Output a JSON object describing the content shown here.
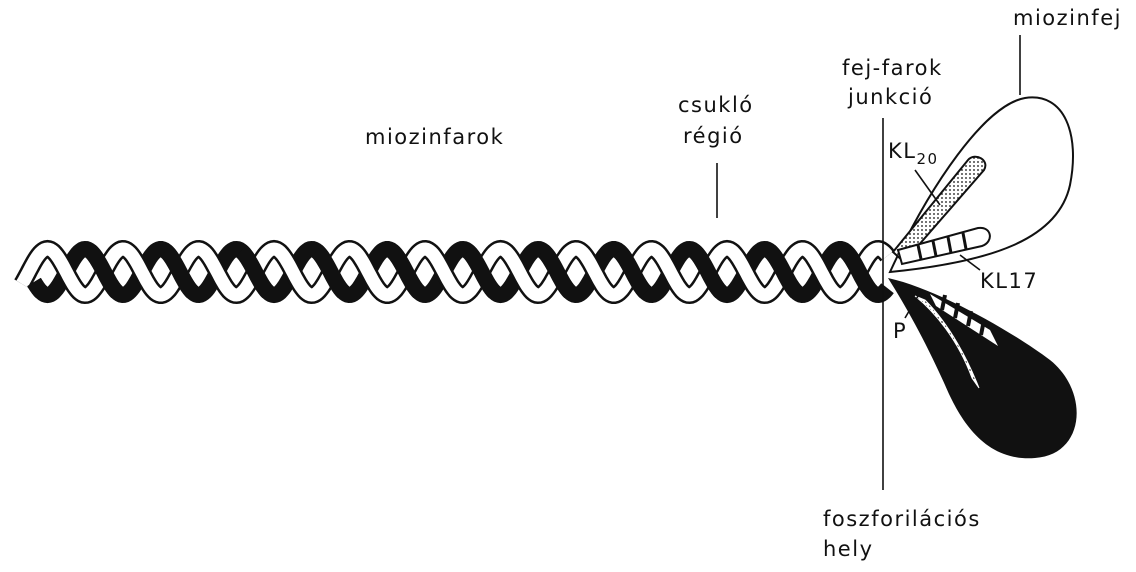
{
  "labels": {
    "tail": "miozinfarok",
    "hinge_1": "csukló",
    "hinge_2": "régió",
    "junction_1": "fej-farok",
    "junction_2": "junkció",
    "head": "miozinfej",
    "kl20_main": "KL",
    "kl20_sub": "20",
    "kl17": "KL17",
    "p": "P",
    "phospho_1": "foszforilációs",
    "phospho_2": "hely"
  },
  "colors": {
    "ink": "#111111",
    "paper": "#ffffff"
  }
}
